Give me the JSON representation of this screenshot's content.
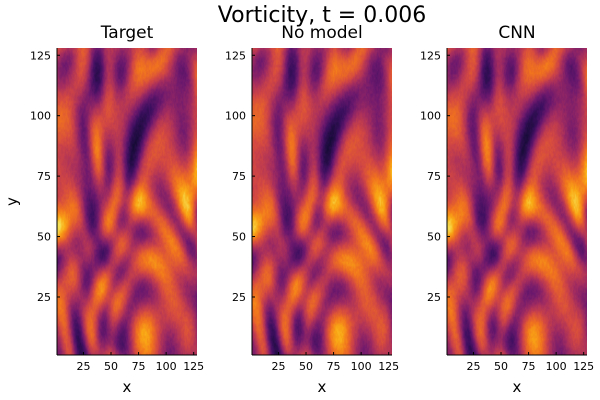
{
  "chart_data": {
    "type": "heatmap",
    "title": "Vorticity, t = 0.006",
    "colormap": "inferno",
    "panels": [
      {
        "title": "Target",
        "xlabel": "x",
        "ylabel": "y",
        "seed": 1
      },
      {
        "title": "No model",
        "xlabel": "x",
        "ylabel": "",
        "seed": 2
      },
      {
        "title": "CNN",
        "xlabel": "x",
        "ylabel": "",
        "seed": 3
      }
    ],
    "grid_size": 128,
    "xlim": [
      1,
      128
    ],
    "ylim": [
      1,
      128
    ],
    "x_ticks": [
      25,
      50,
      75,
      100,
      125
    ],
    "y_ticks": [
      25,
      50,
      75,
      100,
      125
    ],
    "grid": false
  }
}
